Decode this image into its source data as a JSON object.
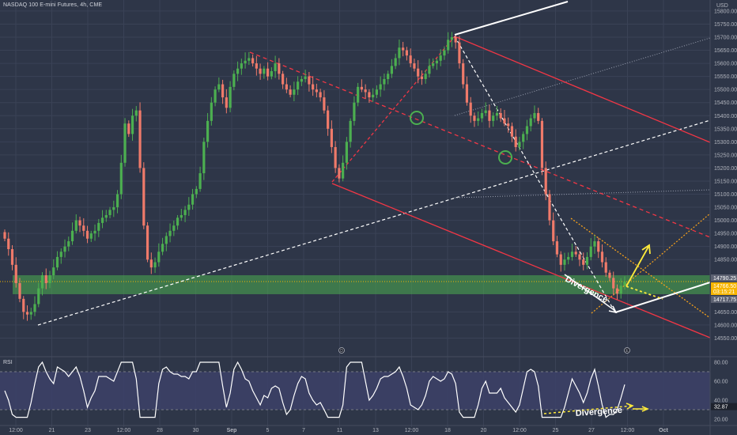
{
  "header": {
    "title": "NASDAQ 100 E-mini Futures, 4h, CME",
    "currency": "USD"
  },
  "rsi_panel": {
    "label": "RSI"
  },
  "price_axis": {
    "ticks": [
      "15800.00",
      "15750.00",
      "15700.00",
      "15650.00",
      "15600.00",
      "15550.00",
      "15500.00",
      "15450.00",
      "15400.00",
      "15350.00",
      "15300.00",
      "15250.00",
      "15200.00",
      "15150.00",
      "15100.00",
      "15050.00",
      "15000.00",
      "14950.00",
      "14900.00",
      "14850.00",
      "14650.00",
      "14600.00",
      "14550.00"
    ],
    "badges": [
      {
        "text": "14790.25",
        "color": "#5d6272"
      },
      {
        "text": "14766.50",
        "color": "#f7b500"
      },
      {
        "text": "03:15:21",
        "color": "#f7b500"
      },
      {
        "text": "14717.75",
        "color": "#5d6272"
      }
    ]
  },
  "rsi_axis": {
    "ticks": [
      "80.00",
      "60.00",
      "40.00",
      "20.00"
    ],
    "badge": {
      "text": "32.87",
      "color": "#1e222d"
    }
  },
  "time_axis": {
    "labels": [
      "12:00",
      "21",
      "23",
      "12:00",
      "28",
      "30",
      "Sep",
      "5",
      "7",
      "11",
      "13",
      "12:00",
      "18",
      "20",
      "12:00",
      "25",
      "27",
      "12:00",
      "Oct"
    ]
  },
  "annotations": {
    "divergence_price": "Divergence",
    "divergence_rsi": "Divergence"
  },
  "event_markers": [
    "D",
    "E"
  ],
  "colors": {
    "background": "#2e3648",
    "bull": "#4caf50",
    "bear": "#ef7a6a",
    "channel_red": "#f23645",
    "zone_green": "#4caf50",
    "rsi_line": "#ffffff",
    "rsi_band": "#3c4169",
    "arrow_yellow": "#ffeb3b",
    "dotted_orange": "#f7a21b"
  },
  "chart_data": {
    "type": "candlestick",
    "title": "NASDAQ 100 E-mini Futures, 4h, CME",
    "currency": "USD",
    "ylim": [
      14500,
      15830
    ],
    "closes": [
      14930,
      14890,
      14830,
      14760,
      14700,
      14650,
      14640,
      14650,
      14680,
      14740,
      14790,
      14760,
      14790,
      14820,
      14860,
      14880,
      14900,
      14920,
      14960,
      15000,
      14980,
      14960,
      14930,
      14950,
      14960,
      14990,
      15010,
      15020,
      15040,
      15050,
      15100,
      15220,
      15370,
      15330,
      15400,
      15420,
      15200,
      14980,
      14850,
      14820,
      14840,
      14880,
      14910,
      14940,
      14960,
      14980,
      15010,
      15020,
      15040,
      15060,
      15100,
      15120,
      15180,
      15300,
      15380,
      15450,
      15500,
      15520,
      15470,
      15430,
      15510,
      15560,
      15580,
      15600,
      15610,
      15620,
      15600,
      15580,
      15560,
      15580,
      15550,
      15570,
      15600,
      15560,
      15520,
      15500,
      15480,
      15500,
      15530,
      15540,
      15550,
      15520,
      15500,
      15490,
      15470,
      15420,
      15350,
      15280,
      15200,
      15160,
      15220,
      15300,
      15380,
      15450,
      15510,
      15500,
      15490,
      15470,
      15480,
      15500,
      15520,
      15540,
      15560,
      15590,
      15620,
      15660,
      15650,
      15630,
      15600,
      15580,
      15550,
      15540,
      15560,
      15590,
      15600,
      15610,
      15630,
      15650,
      15690,
      15700,
      15680,
      15600,
      15520,
      15450,
      15400,
      15380,
      15390,
      15410,
      15420,
      15380,
      15400,
      15410,
      15390,
      15370,
      15360,
      15320,
      15280,
      15300,
      15330,
      15360,
      15390,
      15410,
      15380,
      15200,
      15100,
      15000,
      14920,
      14870,
      14830,
      14850,
      14860,
      14880,
      14870,
      14850,
      14830,
      14860,
      14900,
      14920,
      14880,
      14840,
      14800,
      14780,
      14740,
      14720,
      14750,
      14766
    ],
    "axis_labels_x": [
      "12:00",
      "21",
      "23",
      "12:00",
      "28",
      "30",
      "Sep",
      "5",
      "7",
      "11",
      "13",
      "12:00",
      "18",
      "20",
      "12:00",
      "25",
      "27",
      "12:00",
      "Oct"
    ],
    "highlighted_levels": [
      14790.25,
      14766.5,
      14717.75
    ],
    "rsi": {
      "ylim": [
        15,
        85
      ],
      "current": 32.87,
      "levels": [
        70,
        30
      ]
    }
  }
}
